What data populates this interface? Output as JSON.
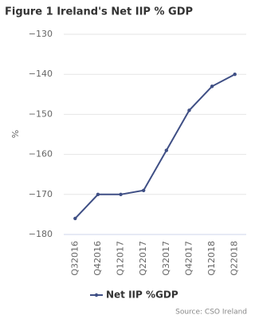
{
  "chart_data": {
    "type": "line",
    "title": "Figure 1 Ireland's Net IIP % GDP",
    "y_label": "%",
    "categories": [
      "Q32016",
      "Q42016",
      "Q12017",
      "Q22017",
      "Q32017",
      "Q42017",
      "Q12018",
      "Q22018"
    ],
    "series": [
      {
        "name": "Net IIP %GDP",
        "color": "#3f4f85",
        "values": [
          -176,
          -170,
          -170,
          -169,
          -159,
          -149,
          -143,
          -140
        ]
      }
    ],
    "ylim": [
      -180,
      -130
    ],
    "yticks": [
      {
        "value": -180,
        "label": "−180"
      },
      {
        "value": -170,
        "label": "−170"
      },
      {
        "value": -160,
        "label": "−160"
      },
      {
        "value": -150,
        "label": "−150"
      },
      {
        "value": -140,
        "label": "−140"
      },
      {
        "value": -130,
        "label": "−130"
      }
    ],
    "grid": true,
    "source": "Source: CSO Ireland"
  }
}
